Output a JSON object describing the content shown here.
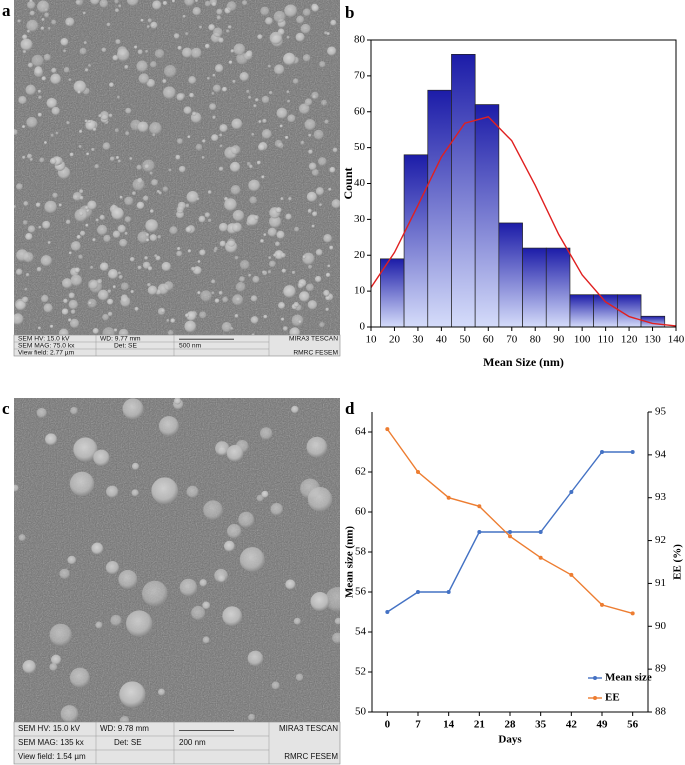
{
  "panel_labels": [
    "a",
    "b",
    "c",
    "d"
  ],
  "sem_images": [
    {
      "hv": "SEM HV: 15.0 kV",
      "wd": "WD: 9.77 mm",
      "brand": "MIRA3 TESCAN",
      "mag": "SEM MAG: 75.0 kx",
      "det": "Det: SE",
      "scale": "500 nm",
      "view_field": "View field: 2.77 µm",
      "lab": "RMRC  FESEM"
    },
    {
      "hv": "SEM HV: 15.0 kV",
      "wd": "WD: 9.78 mm",
      "brand": "MIRA3 TESCAN",
      "mag": "SEM MAG: 135 kx",
      "det": "Det: SE",
      "scale": "200 nm",
      "view_field": "View field: 1.54 µm",
      "lab": "RMRC  FESEM"
    }
  ],
  "chart_data": [
    {
      "type": "histogram",
      "x_label": "Mean Size (nm)",
      "y_label": "Count",
      "bins": [
        14,
        24.1,
        34.2,
        44.3,
        54.4,
        64.5,
        74.6,
        84.7,
        94.8,
        104.9,
        115,
        125.1,
        135.2
      ],
      "counts": [
        19,
        48,
        66,
        76,
        62,
        29,
        22,
        22,
        9,
        9,
        9,
        3
      ],
      "color": "#1c1ca8",
      "fit_curve": {
        "color": "#e02020",
        "x": [
          10,
          20,
          30,
          40,
          50,
          60,
          70,
          80,
          90,
          100,
          110,
          120,
          130,
          140
        ],
        "values": [
          11.0,
          20.8,
          33.9,
          47.4,
          56.8,
          58.6,
          51.9,
          39.5,
          25.8,
          14.5,
          7.0,
          2.9,
          1.0,
          0.3
        ]
      },
      "xlim": [
        10,
        140
      ],
      "xticks": [
        10,
        20,
        30,
        40,
        50,
        60,
        70,
        80,
        90,
        100,
        110,
        120,
        130,
        140
      ],
      "ylim": [
        0,
        80
      ],
      "yticks": [
        0,
        10,
        20,
        30,
        40,
        50,
        60,
        70,
        80
      ]
    },
    {
      "type": "line",
      "x_label": "Days",
      "y_label": "Mean size (nm)",
      "y2_label": "EE (%)",
      "categories": [
        "0",
        "7",
        "14",
        "21",
        "28",
        "35",
        "42",
        "49",
        "56"
      ],
      "series": [
        {
          "name": "Mean size",
          "color": "#4472c4",
          "values": [
            55,
            56,
            56,
            59,
            59,
            59,
            61,
            63,
            63
          ]
        },
        {
          "name": "EE",
          "color": "#ed7d31",
          "axis": "y2",
          "values": [
            94.6,
            93.6,
            93.0,
            92.8,
            92.1,
            91.6,
            91.2,
            90.5,
            90.3
          ]
        }
      ],
      "ylim": [
        50,
        65
      ],
      "yticks": [
        50,
        52,
        54,
        56,
        58,
        60,
        62,
        64
      ],
      "y2lim": [
        88,
        95
      ],
      "y2ticks": [
        88,
        89,
        90,
        91,
        92,
        93,
        94,
        95
      ],
      "legend": "lower right"
    }
  ]
}
